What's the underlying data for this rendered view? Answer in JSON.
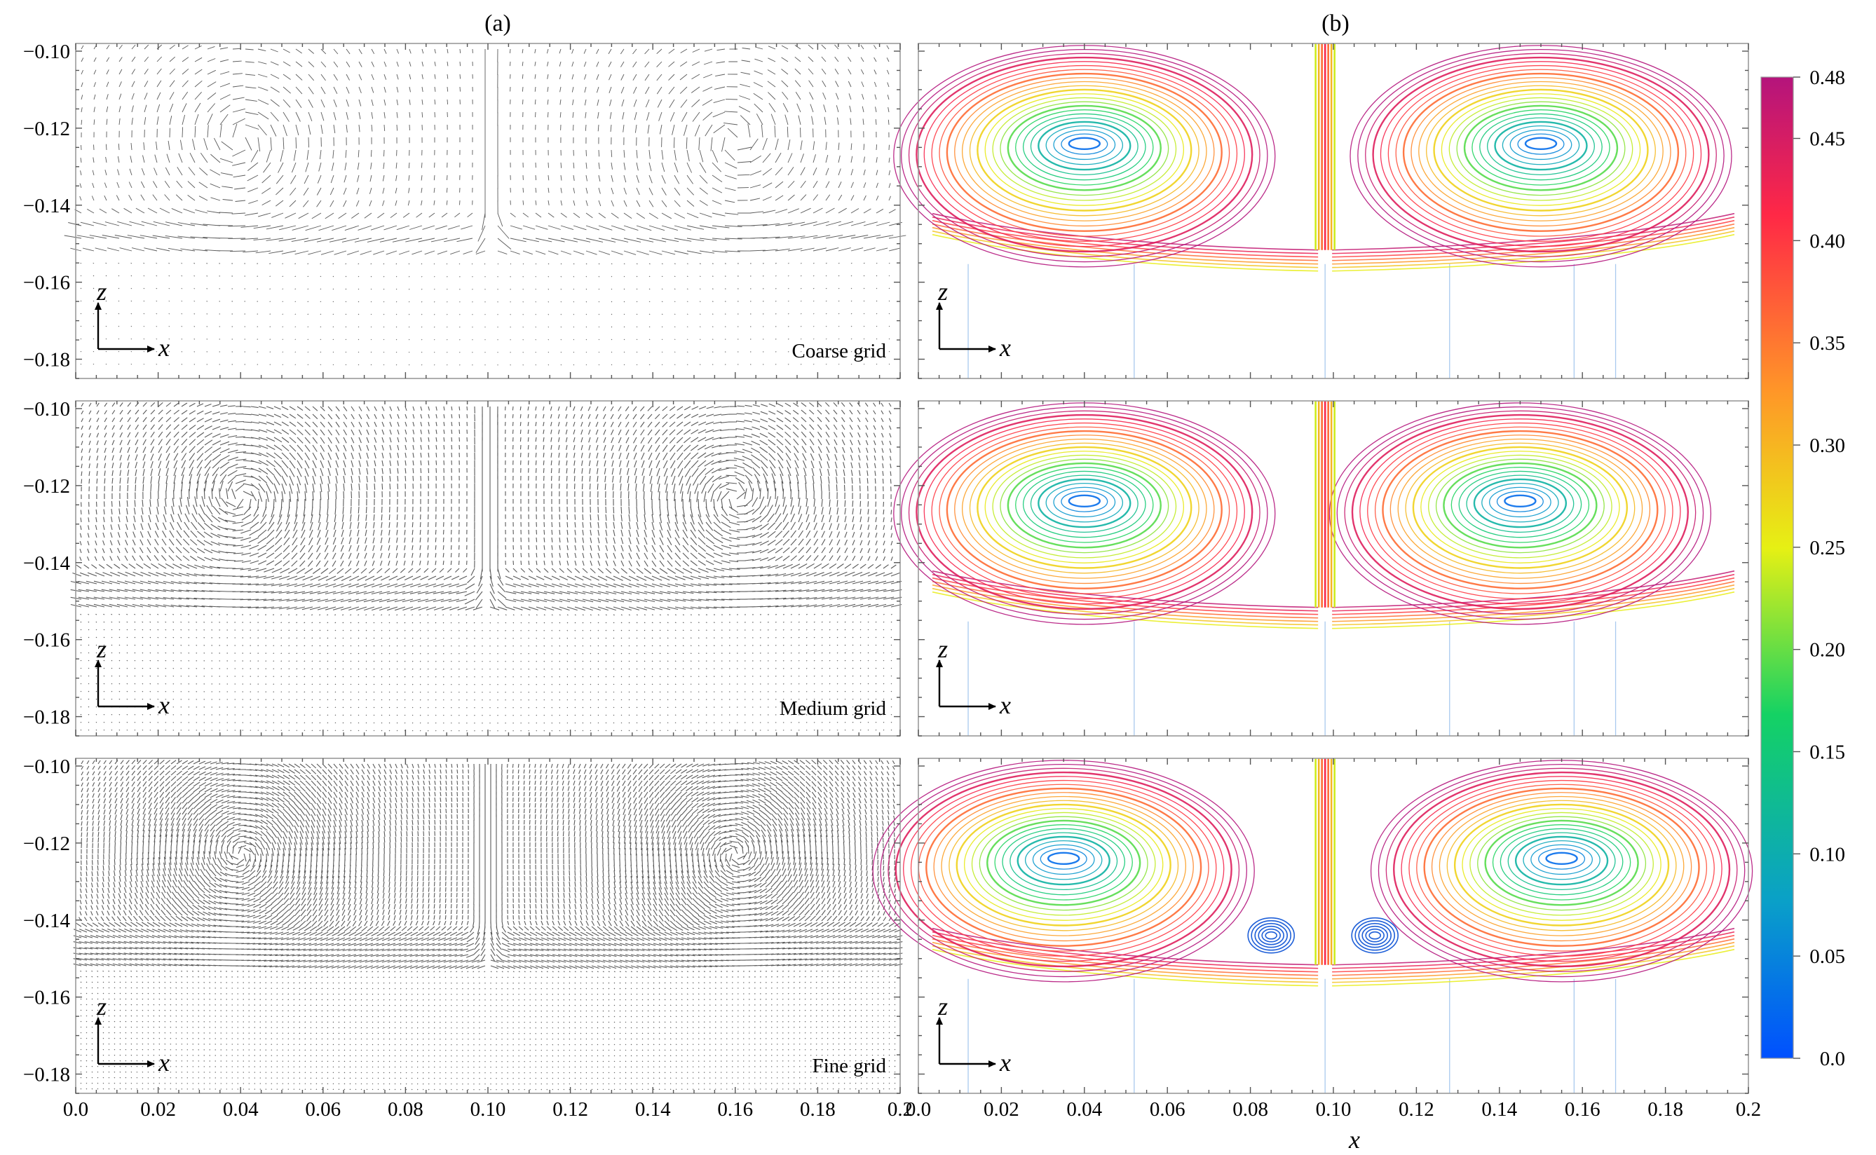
{
  "figure": {
    "panel_labels": [
      "(a)",
      "(b)"
    ],
    "x_axis_title": "x",
    "x_ticks": [
      "0.0",
      "0.02",
      "0.04",
      "0.06",
      "0.08",
      "0.10",
      "0.12",
      "0.14",
      "0.16",
      "0.18",
      "0.2"
    ],
    "z_ticks": [
      "-0.10",
      "-0.12",
      "-0.14",
      "-0.16",
      "-0.18"
    ],
    "row_labels": [
      "Coarse grid",
      "Medium grid",
      "Fine grid"
    ],
    "inset_axes": {
      "vertical": "z",
      "horizontal": "x"
    }
  },
  "colorbar": {
    "ticks": [
      "0.48",
      "0.45",
      "0.40",
      "0.35",
      "0.30",
      "0.25",
      "0.20",
      "0.15",
      "0.10",
      "0.05",
      "0.0"
    ],
    "min": 0.0,
    "max": 0.48,
    "colormap": [
      "#0050ff",
      "#0aa0c8",
      "#14d264",
      "#e6f014",
      "#ff9628",
      "#ff2846",
      "#b4147c"
    ]
  },
  "chart_data": [
    {
      "type": "vector-field",
      "panel": "(a)",
      "rows": [
        "Coarse grid",
        "Medium grid",
        "Fine grid"
      ],
      "xlim": [
        0.0,
        0.2
      ],
      "ylim": [
        -0.185,
        -0.098
      ],
      "vortex_centers_x": [
        0.04,
        0.16
      ],
      "vortex_center_z": -0.123,
      "jet_x": 0.1,
      "interface_z": -0.148
    },
    {
      "type": "streamlines",
      "panel": "(b)",
      "rows": [
        "Coarse grid",
        "Medium grid",
        "Fine grid"
      ],
      "xlim": [
        0.0,
        0.2
      ],
      "ylim": [
        -0.185,
        -0.098
      ],
      "color_scale": "velocity magnitude",
      "vmin": 0.0,
      "vmax": 0.48,
      "vortex_centers_x": [
        [
          0.04,
          0.15
        ],
        [
          0.04,
          0.145
        ],
        [
          0.035,
          0.155
        ]
      ],
      "vortex_center_z": -0.124,
      "secondary_vortices_x": [
        0.085,
        0.11
      ],
      "secondary_vortex_z": -0.144,
      "jet_x": 0.098
    }
  ]
}
